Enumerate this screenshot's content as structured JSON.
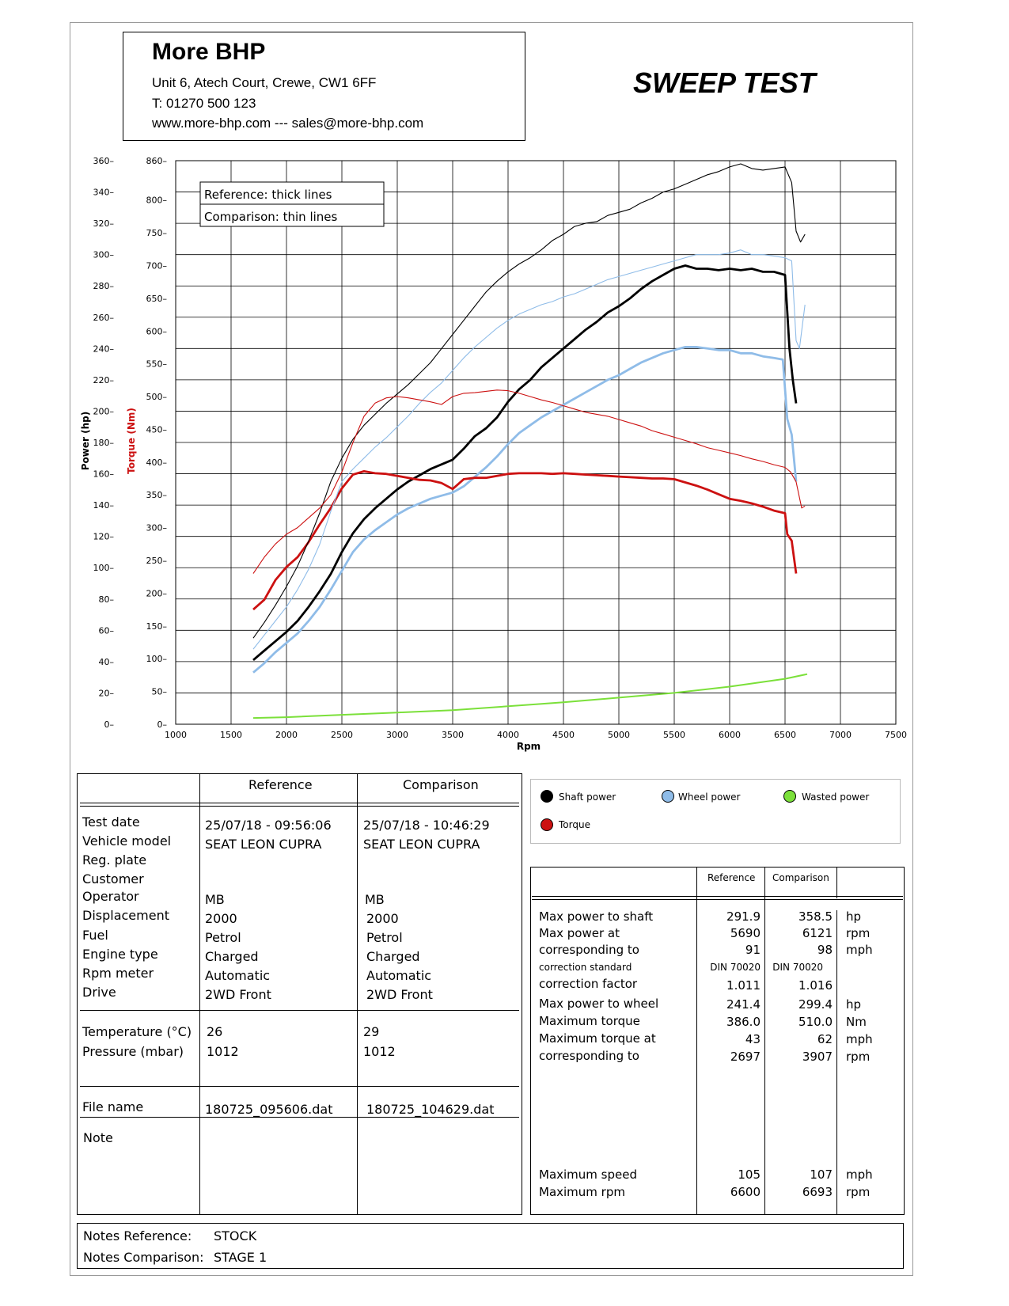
{
  "header": {
    "company": "More BHP",
    "address": "Unit 6, Atech Court, Crewe, CW1 6FF",
    "phone": "T: 01270 500 123",
    "web": "www.more-bhp.com --- sales@more-bhp.com",
    "title": "SWEEP TEST"
  },
  "chart_data": {
    "type": "line",
    "xlabel": "Rpm",
    "ylabel": "Power (hp)",
    "y2label": "Torque (Nm)",
    "xlim": [
      1000,
      7500
    ],
    "ylim": [
      0,
      360
    ],
    "y2lim": [
      0,
      860
    ],
    "x_ticks": [
      1000,
      1500,
      2000,
      2500,
      3000,
      3500,
      4000,
      4500,
      5000,
      5500,
      6000,
      6500,
      7000,
      7500
    ],
    "y_ticks": [
      0,
      20,
      40,
      60,
      80,
      100,
      120,
      140,
      160,
      180,
      200,
      220,
      240,
      260,
      280,
      300,
      320,
      340,
      360
    ],
    "y2_ticks": [
      0,
      50,
      100,
      150,
      200,
      250,
      300,
      350,
      400,
      450,
      500,
      550,
      600,
      650,
      700,
      750,
      800,
      860
    ],
    "grid": true,
    "legend_note": [
      "Reference: thick lines",
      "Comparison: thin lines"
    ],
    "colors": {
      "shaft": "#000000",
      "wheel": "#8fbce8",
      "torque": "#cc1111",
      "wasted": "#7be03a"
    },
    "series": [
      {
        "name": "Shaft power",
        "run": "Reference",
        "axis": "power",
        "x": [
          1700,
          1800,
          1900,
          2000,
          2100,
          2200,
          2300,
          2400,
          2500,
          2600,
          2700,
          2800,
          2900,
          3000,
          3100,
          3200,
          3300,
          3400,
          3500,
          3600,
          3700,
          3800,
          3900,
          4000,
          4100,
          4200,
          4300,
          4400,
          4500,
          4600,
          4700,
          4800,
          4900,
          5000,
          5100,
          5200,
          5300,
          5400,
          5500,
          5600,
          5700,
          5800,
          5900,
          6000,
          6100,
          6200,
          6300,
          6400,
          6500,
          6540,
          6570,
          6600
        ],
        "y": [
          41,
          47,
          53,
          59,
          66,
          75,
          85,
          96,
          110,
          122,
          131,
          138,
          144,
          150,
          155,
          159,
          163,
          166,
          169,
          176,
          184,
          189,
          196,
          206,
          214,
          220,
          228,
          234,
          240,
          246,
          252,
          257,
          263,
          267,
          272,
          278,
          283,
          287,
          291,
          293,
          291,
          291,
          290,
          291,
          290,
          291,
          289,
          289,
          287,
          240,
          220,
          205
        ]
      },
      {
        "name": "Wheel power",
        "run": "Reference",
        "axis": "power",
        "x": [
          1700,
          1800,
          1900,
          2000,
          2100,
          2200,
          2300,
          2400,
          2500,
          2600,
          2700,
          2800,
          2900,
          3000,
          3100,
          3200,
          3300,
          3400,
          3500,
          3600,
          3700,
          3800,
          3900,
          4000,
          4100,
          4200,
          4300,
          4400,
          4500,
          4600,
          4700,
          4800,
          4900,
          5000,
          5100,
          5200,
          5300,
          5400,
          5500,
          5600,
          5700,
          5800,
          5900,
          6000,
          6100,
          6200,
          6300,
          6400,
          6480,
          6520,
          6560,
          6600
        ],
        "y": [
          33,
          39,
          46,
          52,
          58,
          66,
          75,
          86,
          98,
          110,
          118,
          124,
          129,
          134,
          138,
          141,
          144,
          146,
          148,
          152,
          158,
          164,
          171,
          179,
          186,
          191,
          196,
          200,
          204,
          208,
          212,
          216,
          220,
          223,
          227,
          231,
          234,
          237,
          239,
          241,
          241,
          240,
          239,
          239,
          237,
          237,
          235,
          234,
          233,
          195,
          185,
          155
        ]
      },
      {
        "name": "Torque",
        "run": "Reference",
        "axis": "torque",
        "x": [
          1700,
          1800,
          1900,
          2000,
          2100,
          2200,
          2300,
          2400,
          2500,
          2600,
          2700,
          2800,
          2900,
          3000,
          3100,
          3200,
          3300,
          3400,
          3500,
          3600,
          3700,
          3800,
          3900,
          4000,
          4100,
          4200,
          4300,
          4400,
          4500,
          4600,
          4700,
          4800,
          4900,
          5000,
          5100,
          5200,
          5300,
          5400,
          5500,
          5600,
          5700,
          5800,
          5900,
          6000,
          6100,
          6200,
          6300,
          6400,
          6500,
          6520,
          6560,
          6600
        ],
        "y": [
          175,
          190,
          220,
          240,
          255,
          278,
          305,
          330,
          360,
          381,
          386,
          383,
          382,
          379,
          376,
          373,
          372,
          368,
          359,
          374,
          376,
          376,
          379,
          382,
          383,
          383,
          383,
          382,
          383,
          382,
          381,
          380,
          379,
          378,
          377,
          376,
          375,
          375,
          374,
          369,
          364,
          358,
          351,
          344,
          341,
          337,
          332,
          326,
          322,
          290,
          280,
          230
        ]
      },
      {
        "name": "Wasted power",
        "run": "Reference",
        "axis": "power",
        "x": [
          1700,
          2000,
          2500,
          3000,
          3500,
          4000,
          4500,
          5000,
          5500,
          6000,
          6500,
          6700
        ],
        "y": [
          4,
          4.5,
          6,
          7.5,
          9,
          11.5,
          14,
          17,
          20,
          24,
          29,
          32
        ]
      },
      {
        "name": "Shaft power",
        "run": "Comparison",
        "axis": "power",
        "x": [
          1700,
          1800,
          1900,
          2000,
          2100,
          2200,
          2300,
          2400,
          2500,
          2600,
          2700,
          2800,
          2900,
          3000,
          3100,
          3200,
          3300,
          3400,
          3500,
          3600,
          3700,
          3800,
          3900,
          4000,
          4100,
          4200,
          4300,
          4400,
          4500,
          4600,
          4700,
          4800,
          4900,
          5000,
          5100,
          5200,
          5300,
          5400,
          5500,
          5600,
          5700,
          5800,
          5900,
          6000,
          6100,
          6200,
          6300,
          6400,
          6500,
          6560,
          6600,
          6640,
          6680
        ],
        "y": [
          55,
          65,
          76,
          88,
          101,
          117,
          135,
          155,
          170,
          182,
          191,
          198,
          205,
          211,
          217,
          224,
          231,
          240,
          249,
          258,
          267,
          276,
          283,
          289,
          294,
          298,
          303,
          309,
          313,
          318,
          320,
          321,
          325,
          327,
          329,
          333,
          336,
          340,
          342,
          345,
          348,
          351,
          353,
          356,
          358,
          355,
          354,
          355,
          356,
          346,
          315,
          308,
          313
        ]
      },
      {
        "name": "Wheel power",
        "run": "Comparison",
        "axis": "power",
        "x": [
          1700,
          1800,
          1900,
          2000,
          2100,
          2200,
          2300,
          2400,
          2500,
          2600,
          2700,
          2800,
          2900,
          3000,
          3100,
          3200,
          3300,
          3400,
          3500,
          3600,
          3700,
          3800,
          3900,
          4000,
          4100,
          4200,
          4300,
          4400,
          4500,
          4600,
          4700,
          4800,
          4900,
          5000,
          5100,
          5200,
          5300,
          5400,
          5500,
          5600,
          5700,
          5800,
          5900,
          6000,
          6100,
          6200,
          6300,
          6400,
          6500,
          6560,
          6600,
          6630,
          6680
        ],
        "y": [
          48,
          57,
          66,
          75,
          86,
          99,
          115,
          136,
          155,
          163,
          170,
          177,
          183,
          190,
          197,
          205,
          212,
          218,
          226,
          234,
          241,
          247,
          253,
          258,
          262,
          265,
          268,
          270,
          273,
          275,
          278,
          281,
          284,
          286,
          288,
          290,
          292,
          294,
          296,
          298,
          300,
          300,
          300,
          301,
          303,
          300,
          300,
          299,
          298,
          296,
          245,
          240,
          268
        ]
      },
      {
        "name": "Torque",
        "run": "Comparison",
        "axis": "torque",
        "x": [
          1700,
          1800,
          1900,
          2000,
          2100,
          2200,
          2300,
          2400,
          2500,
          2600,
          2700,
          2800,
          2900,
          3000,
          3100,
          3200,
          3300,
          3400,
          3500,
          3600,
          3700,
          3800,
          3900,
          4000,
          4100,
          4200,
          4300,
          4400,
          4500,
          4600,
          4700,
          4800,
          4900,
          5000,
          5100,
          5200,
          5300,
          5400,
          5500,
          5600,
          5700,
          5800,
          5900,
          6000,
          6100,
          6200,
          6300,
          6400,
          6500,
          6550,
          6600,
          6650,
          6680
        ],
        "y": [
          230,
          255,
          275,
          290,
          300,
          315,
          330,
          350,
          385,
          430,
          470,
          490,
          498,
          500,
          498,
          495,
          492,
          488,
          500,
          505,
          506,
          508,
          510,
          509,
          505,
          500,
          495,
          491,
          486,
          481,
          476,
          473,
          470,
          465,
          460,
          455,
          448,
          443,
          438,
          433,
          428,
          422,
          418,
          414,
          410,
          405,
          401,
          396,
          392,
          385,
          370,
          330,
          333
        ]
      }
    ]
  },
  "chart_legend": {
    "shaft": "Shaft power",
    "wheel": "Wheel power",
    "wasted": "Wasted power",
    "torque": "Torque"
  },
  "info_table": {
    "col_reference": "Reference",
    "col_comparison": "Comparison",
    "labels": [
      "Test date",
      "Vehicle model",
      "Reg. plate",
      "Customer",
      "Operator",
      "Displacement",
      "Fuel",
      "Engine type",
      "Rpm meter",
      "Drive"
    ],
    "reference": {
      "test_date": "25/07/18 - 09:56:06",
      "vehicle_model": "SEAT LEON CUPRA",
      "operator": "MB",
      "displacement": "2000",
      "fuel": "Petrol",
      "engine_type": "Charged",
      "rpm_meter": "Automatic",
      "drive": "2WD Front",
      "temperature": "26",
      "pressure": "1012",
      "file_name": "180725_095606.dat"
    },
    "comparison": {
      "test_date": "25/07/18 - 10:46:29",
      "vehicle_model": "SEAT LEON CUPRA",
      "operator": "MB",
      "displacement": "2000",
      "fuel": "Petrol",
      "engine_type": "Charged",
      "rpm_meter": "Automatic",
      "drive": "2WD Front",
      "temperature": "29",
      "pressure": "1012",
      "file_name": "180725_104629.dat"
    },
    "temperature_label": "Temperature (°C)",
    "pressure_label": "Pressure (mbar)",
    "file_name_label": "File name",
    "note_label": "Note"
  },
  "results_table": {
    "col_reference": "Reference",
    "col_comparison": "Comparison",
    "rows": [
      {
        "label": "Max power to shaft",
        "ref": "291.9",
        "comp": "358.5",
        "unit": "hp"
      },
      {
        "label": "Max power at",
        "ref": "5690",
        "comp": "6121",
        "unit": "rpm"
      },
      {
        "label": "corresponding to",
        "ref": "91",
        "comp": "98",
        "unit": "mph"
      },
      {
        "label": "correction standard",
        "ref": "DIN 70020",
        "comp": "DIN 70020",
        "unit": ""
      },
      {
        "label": "correction factor",
        "ref": "1.011",
        "comp": "1.016",
        "unit": ""
      },
      {
        "label": "Max power to wheel",
        "ref": "241.4",
        "comp": "299.4",
        "unit": "hp"
      },
      {
        "label": "Maximum torque",
        "ref": "386.0",
        "comp": "510.0",
        "unit": "Nm"
      },
      {
        "label": "Maximum torque at",
        "ref": "43",
        "comp": "62",
        "unit": "mph"
      },
      {
        "label": "corresponding to",
        "ref": "2697",
        "comp": "3907",
        "unit": "rpm"
      },
      {
        "label": "Maximum speed",
        "ref": "105",
        "comp": "107",
        "unit": "mph"
      },
      {
        "label": "Maximum rpm",
        "ref": "6600",
        "comp": "6693",
        "unit": "rpm"
      }
    ]
  },
  "notes": {
    "ref_label": "Notes Reference:",
    "ref_value": "STOCK",
    "comp_label": "Notes Comparison:",
    "comp_value": "STAGE 1"
  }
}
